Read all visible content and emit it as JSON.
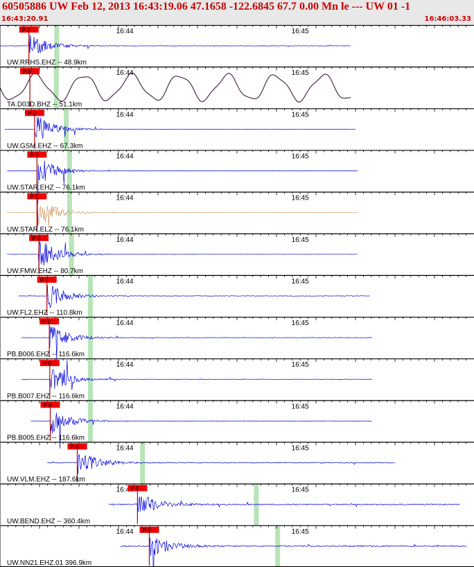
{
  "header": {
    "title": "60505886 UW Feb 12, 2013 16:43:19.06   47.1658 -122.6845 67.7 0.00 Mn le --- UW 01  -1",
    "start_time": "16:43:20.91",
    "end_time": "16:46:03.33"
  },
  "colors": {
    "header_text": "#cc0000",
    "header_bg": "#e8e8e8",
    "trace": "#0000dd",
    "trace_long_period": "#3a1b3c",
    "trace_horizontal": "#d29a64",
    "pick_box": "#ee0000",
    "pick_line": "#b00000",
    "green_bar": "#b8e4b8"
  },
  "chart_data": {
    "type": "line",
    "title": "",
    "x_axis": {
      "start": "16:43:20.91",
      "end": "16:46:03.33",
      "tick_labels": [
        "16:44",
        "16:45"
      ]
    },
    "picks_label": "P 0",
    "series": [
      {
        "label": "UW.RRHS.EHZ -- 48.9km",
        "color": "trace",
        "pick": 0.061,
        "green": [
          0.061,
          0.119
        ],
        "start": 0.0,
        "end": 0.74,
        "amp": 0.18,
        "seed": 11
      },
      {
        "label": "TA.D03D.BHZ -- 51.1km",
        "color": "trace_long_period",
        "pick": 0.063,
        "green": [
          0.063,
          0.118
        ],
        "start": 0.0,
        "end": 0.74,
        "amp": 0.55,
        "seed": 12
      },
      {
        "label": "UW.GSM.EHZ -- 67.3km",
        "color": "trace",
        "pick": 0.073,
        "green": [
          0.073,
          0.139
        ],
        "start": 0.01,
        "end": 0.75,
        "amp": 0.05,
        "seed": 13
      },
      {
        "label": "UW.STAR.EHZ -- 76.1km",
        "color": "trace",
        "pick": 0.078,
        "green": [
          0.078,
          0.146
        ],
        "start": 0.015,
        "end": 0.755,
        "amp": 0.04,
        "seed": 14
      },
      {
        "label": "UW.STAR.ELZ -- 76.1km",
        "color": "trace_horizontal",
        "pick": 0.078,
        "green": [
          0.078,
          0.146
        ],
        "start": 0.015,
        "end": 0.755,
        "amp": 0.04,
        "seed": 15
      },
      {
        "label": "UW.FMW.EHZ -- 80.7km",
        "color": "trace",
        "pick": 0.082,
        "green": [
          0.082,
          0.15
        ],
        "start": 0.015,
        "end": 0.755,
        "amp": 0.04,
        "seed": 16
      },
      {
        "label": "UW.FL2.EHZ -- 110.8km",
        "color": "trace",
        "pick": 0.099,
        "green": [
          0.099,
          0.19
        ],
        "start": 0.04,
        "end": 0.78,
        "amp": 0.16,
        "seed": 17
      },
      {
        "label": "PB.B006.EHZ -- 116.6km",
        "color": "trace",
        "pick": 0.104,
        "green": [
          0.104,
          0.19
        ],
        "start": 0.045,
        "end": 0.785,
        "amp": 0.14,
        "seed": 18
      },
      {
        "label": "PB.B007.EHZ -- 116.6km",
        "color": "trace",
        "pick": 0.105,
        "green": [
          0.105,
          0.19
        ],
        "start": 0.045,
        "end": 0.785,
        "amp": 0.14,
        "seed": 19
      },
      {
        "label": "PB.B005.EHZ -- 116.6km",
        "color": "trace",
        "pick": 0.106,
        "green": [
          0.106,
          0.19
        ],
        "start": 0.065,
        "end": 0.785,
        "amp": 0.12,
        "seed": 20
      },
      {
        "label": "UW.VLM.EHZ -- 187.6km",
        "color": "trace",
        "pick": 0.163,
        "green": [
          0.163,
          0.3
        ],
        "start": 0.1,
        "end": 0.835,
        "amp": 0.3,
        "seed": 21
      },
      {
        "label": "UW.BEND.EHZ -- 360.4km",
        "color": "trace",
        "pick": 0.29,
        "green": [
          0.29,
          0.54
        ],
        "start": 0.23,
        "end": 0.97,
        "amp": 0.4,
        "seed": 22
      },
      {
        "label": "UW.NN21.EHZ.01 396.9km",
        "color": "trace",
        "pick": 0.315,
        "green": [
          0.315,
          0.585
        ],
        "start": 0.255,
        "end": 0.985,
        "amp": 0.4,
        "seed": 23
      }
    ]
  }
}
